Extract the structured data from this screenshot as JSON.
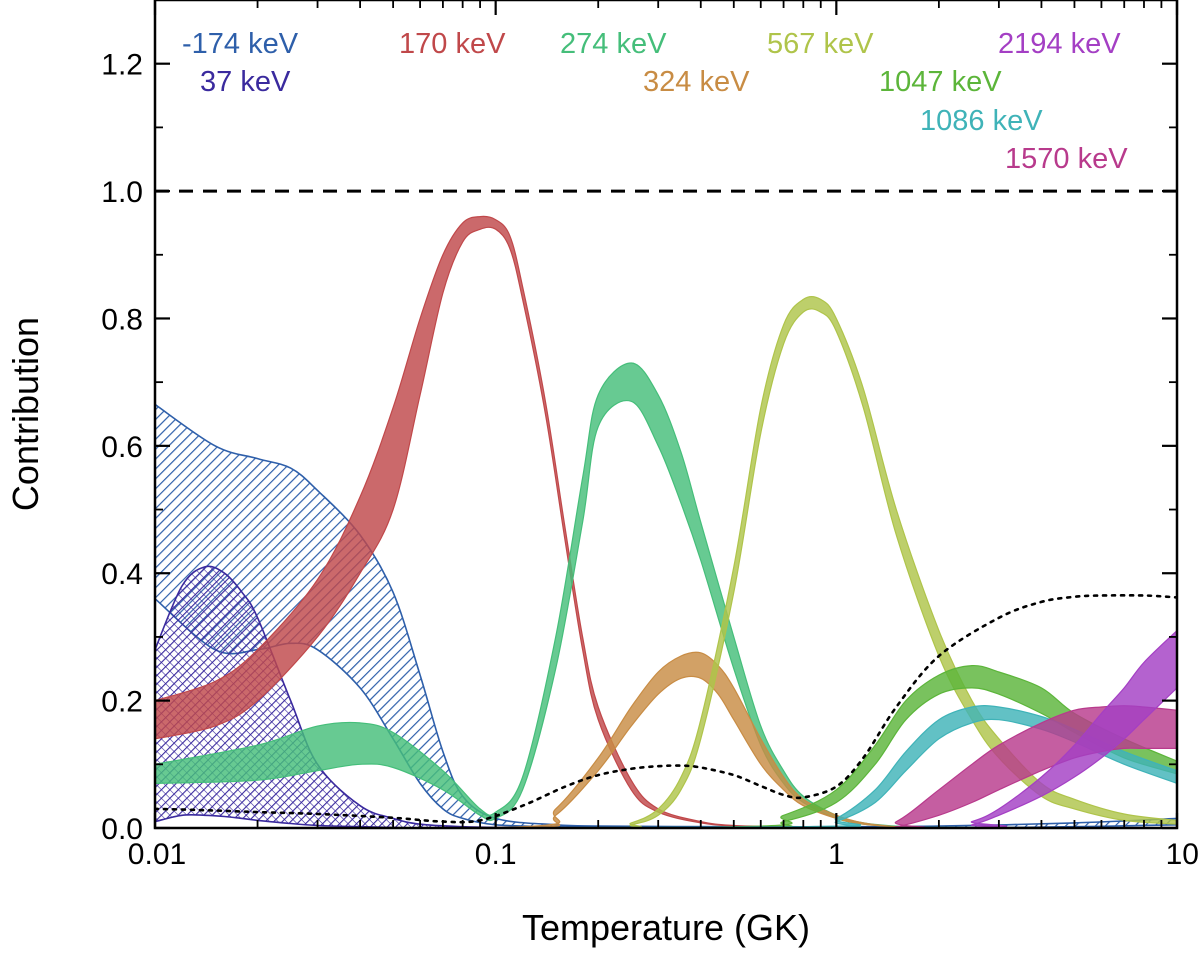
{
  "chart_data": {
    "type": "area",
    "xscale": "log",
    "xlim": [
      0.01,
      10
    ],
    "ylim": [
      0.0,
      1.3
    ],
    "xlabel": "Temperature (GK)",
    "ylabel": "Contribution",
    "xticks": [
      {
        "value": 0.01,
        "label": "0.01"
      },
      {
        "value": 0.1,
        "label": "0.1"
      },
      {
        "value": 1,
        "label": "1"
      },
      {
        "value": 10,
        "label": "10"
      }
    ],
    "yticks": [
      {
        "value": 0.0,
        "label": "0.0"
      },
      {
        "value": 0.2,
        "label": "0.2"
      },
      {
        "value": 0.4,
        "label": "0.4"
      },
      {
        "value": 0.6,
        "label": "0.6"
      },
      {
        "value": 0.8,
        "label": "0.8"
      },
      {
        "value": 1.0,
        "label": "1.0"
      },
      {
        "value": 1.2,
        "label": "1.2"
      }
    ],
    "reference_line": {
      "y": 1.0,
      "style": "dashed"
    },
    "dotted_curve": {
      "x": [
        0.01,
        0.014,
        0.02,
        0.03,
        0.05,
        0.07,
        0.09,
        0.12,
        0.16,
        0.2,
        0.25,
        0.3,
        0.35,
        0.4,
        0.5,
        0.6,
        0.7,
        0.8,
        1.0,
        1.2,
        1.5,
        2.0,
        3.0,
        4.0,
        5.0,
        6.0,
        8.0,
        10.0
      ],
      "y": [
        0.03,
        0.028,
        0.025,
        0.022,
        0.016,
        0.01,
        0.012,
        0.035,
        0.065,
        0.083,
        0.093,
        0.097,
        0.098,
        0.095,
        0.083,
        0.066,
        0.052,
        0.048,
        0.065,
        0.11,
        0.19,
        0.27,
        0.33,
        0.355,
        0.363,
        0.365,
        0.365,
        0.362
      ]
    },
    "series": [
      {
        "name": "-174 keV",
        "color": "#2e5faa",
        "fill": "hatch",
        "x": [
          0.01,
          0.015,
          0.02,
          0.025,
          0.03,
          0.04,
          0.05,
          0.06,
          0.07,
          0.08,
          0.1,
          0.15,
          0.2,
          0.5,
          1.0,
          2.0,
          5.0,
          10.0
        ],
        "lo": [
          0.36,
          0.28,
          0.28,
          0.29,
          0.28,
          0.22,
          0.14,
          0.07,
          0.03,
          0.015,
          0.005,
          0.002,
          0.001,
          0.0,
          0.0,
          0.0,
          0.002,
          0.005
        ],
        "hi": [
          0.665,
          0.6,
          0.58,
          0.565,
          0.53,
          0.46,
          0.37,
          0.24,
          0.12,
          0.05,
          0.015,
          0.005,
          0.003,
          0.002,
          0.002,
          0.003,
          0.008,
          0.015
        ]
      },
      {
        "name": "37 keV",
        "color": "#3a2a9e",
        "fill": "hatch-cross",
        "x": [
          0.01,
          0.012,
          0.014,
          0.016,
          0.018,
          0.02,
          0.025,
          0.03,
          0.04,
          0.05,
          0.06,
          0.08,
          0.1,
          0.2,
          1.0,
          10.0
        ],
        "lo": [
          0.01,
          0.02,
          0.02,
          0.018,
          0.015,
          0.012,
          0.007,
          0.004,
          0.002,
          0.001,
          0.0,
          0.0,
          0.0,
          0.0,
          0.0,
          0.0
        ],
        "hi": [
          0.28,
          0.38,
          0.41,
          0.4,
          0.37,
          0.33,
          0.2,
          0.1,
          0.035,
          0.015,
          0.006,
          0.002,
          0.001,
          0.0,
          0.0,
          0.0
        ]
      },
      {
        "name": "170 keV",
        "color": "#c0484a",
        "fill": "solid",
        "x": [
          0.01,
          0.015,
          0.02,
          0.03,
          0.04,
          0.05,
          0.06,
          0.07,
          0.08,
          0.09,
          0.1,
          0.11,
          0.12,
          0.14,
          0.16,
          0.18,
          0.2,
          0.25,
          0.3,
          0.4,
          0.5,
          0.7,
          1.0,
          10.0
        ],
        "lo": [
          0.14,
          0.16,
          0.2,
          0.3,
          0.4,
          0.5,
          0.68,
          0.84,
          0.92,
          0.94,
          0.94,
          0.91,
          0.83,
          0.65,
          0.45,
          0.28,
          0.17,
          0.06,
          0.025,
          0.008,
          0.003,
          0.001,
          0.0,
          0.0
        ],
        "hi": [
          0.2,
          0.23,
          0.28,
          0.39,
          0.52,
          0.66,
          0.8,
          0.9,
          0.95,
          0.96,
          0.955,
          0.93,
          0.85,
          0.67,
          0.47,
          0.3,
          0.19,
          0.075,
          0.03,
          0.01,
          0.004,
          0.002,
          0.0,
          0.0
        ]
      },
      {
        "name": "274 keV",
        "color": "#45be7a",
        "fill": "solid",
        "x": [
          0.01,
          0.02,
          0.03,
          0.04,
          0.05,
          0.07,
          0.09,
          0.1,
          0.12,
          0.15,
          0.18,
          0.2,
          0.25,
          0.3,
          0.35,
          0.4,
          0.5,
          0.6,
          0.7,
          0.8,
          1.0,
          1.2,
          1.5,
          2.0,
          10.0
        ],
        "lo": [
          0.07,
          0.075,
          0.09,
          0.1,
          0.095,
          0.06,
          0.02,
          0.015,
          0.06,
          0.25,
          0.48,
          0.63,
          0.67,
          0.6,
          0.51,
          0.42,
          0.25,
          0.13,
          0.07,
          0.04,
          0.015,
          0.006,
          0.002,
          0.001,
          0.0
        ],
        "hi": [
          0.1,
          0.13,
          0.16,
          0.165,
          0.15,
          0.09,
          0.03,
          0.025,
          0.08,
          0.3,
          0.55,
          0.68,
          0.73,
          0.68,
          0.59,
          0.48,
          0.3,
          0.16,
          0.09,
          0.05,
          0.02,
          0.008,
          0.003,
          0.001,
          0.0
        ]
      },
      {
        "name": "324 keV",
        "color": "#c88c44",
        "fill": "solid",
        "x": [
          0.01,
          0.12,
          0.15,
          0.2,
          0.25,
          0.3,
          0.35,
          0.4,
          0.45,
          0.5,
          0.6,
          0.7,
          0.8,
          1.0,
          1.2,
          1.5,
          2.0,
          10.0
        ],
        "lo": [
          0.0,
          0.0,
          0.02,
          0.09,
          0.16,
          0.21,
          0.235,
          0.235,
          0.21,
          0.17,
          0.1,
          0.06,
          0.035,
          0.015,
          0.006,
          0.002,
          0.0,
          0.0
        ],
        "hi": [
          0.0,
          0.002,
          0.03,
          0.11,
          0.19,
          0.245,
          0.27,
          0.275,
          0.255,
          0.22,
          0.14,
          0.08,
          0.045,
          0.02,
          0.008,
          0.002,
          0.0,
          0.0
        ]
      },
      {
        "name": "567 keV",
        "color": "#afc44a",
        "fill": "solid",
        "x": [
          0.01,
          0.2,
          0.25,
          0.3,
          0.35,
          0.4,
          0.5,
          0.6,
          0.7,
          0.8,
          0.9,
          1.0,
          1.2,
          1.5,
          2.0,
          2.5,
          3.0,
          4.0,
          5.0,
          7.0,
          10.0
        ],
        "lo": [
          0.0,
          0.0,
          0.005,
          0.02,
          0.06,
          0.14,
          0.37,
          0.62,
          0.76,
          0.81,
          0.81,
          0.78,
          0.66,
          0.46,
          0.27,
          0.17,
          0.11,
          0.05,
          0.03,
          0.012,
          0.006
        ],
        "hi": [
          0.0,
          0.0,
          0.008,
          0.03,
          0.08,
          0.17,
          0.41,
          0.66,
          0.79,
          0.83,
          0.83,
          0.8,
          0.69,
          0.5,
          0.31,
          0.2,
          0.14,
          0.07,
          0.045,
          0.022,
          0.012
        ]
      },
      {
        "name": "1047 keV",
        "color": "#5cb53a",
        "fill": "solid",
        "x": [
          0.01,
          0.5,
          0.7,
          1.0,
          1.3,
          1.6,
          2.0,
          2.5,
          3.0,
          4.0,
          5.0,
          7.0,
          10.0
        ],
        "lo": [
          0.0,
          0.0,
          0.01,
          0.04,
          0.1,
          0.17,
          0.21,
          0.22,
          0.21,
          0.18,
          0.15,
          0.11,
          0.085
        ],
        "hi": [
          0.0,
          0.002,
          0.02,
          0.06,
          0.13,
          0.2,
          0.24,
          0.255,
          0.245,
          0.22,
          0.18,
          0.14,
          0.105
        ]
      },
      {
        "name": "1086 keV",
        "color": "#3fb3b8",
        "fill": "solid",
        "x": [
          0.01,
          0.8,
          1.0,
          1.3,
          1.6,
          2.0,
          2.5,
          3.0,
          4.0,
          5.0,
          7.0,
          10.0
        ],
        "lo": [
          0.0,
          0.0,
          0.01,
          0.04,
          0.09,
          0.14,
          0.165,
          0.17,
          0.155,
          0.135,
          0.1,
          0.07
        ],
        "hi": [
          0.0,
          0.002,
          0.015,
          0.06,
          0.12,
          0.17,
          0.19,
          0.19,
          0.175,
          0.155,
          0.12,
          0.09
        ]
      },
      {
        "name": "1570 keV",
        "color": "#b83a8c",
        "fill": "solid",
        "x": [
          0.01,
          1.2,
          1.5,
          2.0,
          2.5,
          3.0,
          4.0,
          5.0,
          6.0,
          7.0,
          8.0,
          10.0
        ],
        "lo": [
          0.0,
          0.0,
          0.002,
          0.02,
          0.04,
          0.06,
          0.09,
          0.11,
          0.12,
          0.125,
          0.125,
          0.125
        ],
        "hi": [
          0.0,
          0.0,
          0.01,
          0.06,
          0.1,
          0.13,
          0.165,
          0.185,
          0.19,
          0.192,
          0.19,
          0.185
        ]
      },
      {
        "name": "2194 keV",
        "color": "#a43fc4",
        "fill": "solid",
        "x": [
          0.01,
          2.0,
          2.5,
          3.0,
          4.0,
          5.0,
          6.0,
          7.0,
          8.0,
          10.0
        ],
        "lo": [
          0.0,
          0.0,
          0.005,
          0.02,
          0.05,
          0.08,
          0.11,
          0.14,
          0.17,
          0.22
        ],
        "hi": [
          0.0,
          0.0,
          0.01,
          0.03,
          0.08,
          0.13,
          0.18,
          0.22,
          0.26,
          0.31
        ]
      }
    ],
    "labels": [
      {
        "text": "-174 keV",
        "color": "#2e5faa"
      },
      {
        "text": "37 keV",
        "color": "#3a2a9e"
      },
      {
        "text": "170 keV",
        "color": "#c0484a"
      },
      {
        "text": "274 keV",
        "color": "#45be7a"
      },
      {
        "text": "324 keV",
        "color": "#c88c44"
      },
      {
        "text": "567 keV",
        "color": "#afc44a"
      },
      {
        "text": "1047 keV",
        "color": "#5cb53a"
      },
      {
        "text": "1086 keV",
        "color": "#3fb3b8"
      },
      {
        "text": "1570 keV",
        "color": "#b83a8c"
      },
      {
        "text": "2194 keV",
        "color": "#a43fc4"
      }
    ]
  }
}
